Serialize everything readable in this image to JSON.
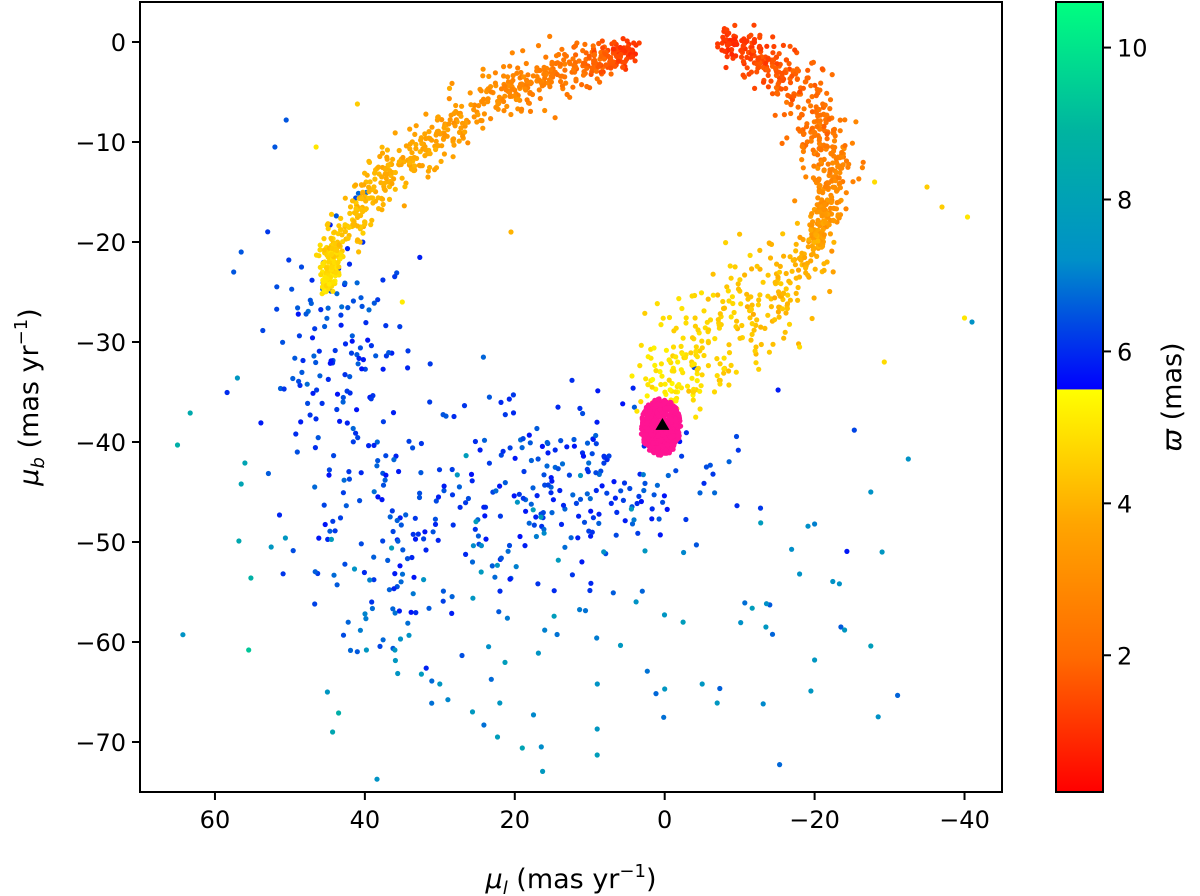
{
  "chart_data": {
    "type": "scatter",
    "title": "",
    "xlabel": "μ_l (mas yr⁻¹)",
    "ylabel": "μ_b (mas yr⁻¹)",
    "xlim": [
      70,
      -45
    ],
    "ylim": [
      -75,
      4
    ],
    "x_axis_inverted": true,
    "x_ticks": [
      60,
      40,
      20,
      0,
      -20,
      -40
    ],
    "x_tick_labels": [
      "60",
      "40",
      "20",
      "0",
      "−20",
      "−40"
    ],
    "y_ticks": [
      0,
      -10,
      -20,
      -30,
      -40,
      -50,
      -60,
      -70
    ],
    "y_tick_labels": [
      "0",
      "−10",
      "−20",
      "−30",
      "−40",
      "−50",
      "−60",
      "−70"
    ],
    "grid": false,
    "colorbar": {
      "label": "ϖ (mas)",
      "range": [
        0.2,
        10.6
      ],
      "ticks": [
        2,
        4,
        6,
        8,
        10
      ],
      "tick_labels": [
        "2",
        "4",
        "6",
        "8",
        "10"
      ],
      "colormap": "red-orange-yellow (ϖ < 5.5) / blue-teal-green (ϖ ≥ 5.5)",
      "segments": [
        {
          "from": 0.2,
          "to": 5.5,
          "colors": [
            "#ff0000",
            "#ff6a00",
            "#ffa500",
            "#ffff00"
          ]
        },
        {
          "from": 5.5,
          "to": 10.6,
          "colors": [
            "#0000ff",
            "#0090c8",
            "#00b4a0",
            "#00ff80"
          ]
        }
      ]
    },
    "series": [
      {
        "marker": "point",
        "color_encodes": "parallax (mas)",
        "groups": [
          {
            "kind": "arc",
            "path": [
              [
                4,
                -1
              ],
              [
                10,
                -2
              ],
              [
                20,
                -4.5
              ],
              [
                30,
                -9
              ],
              [
                38,
                -14
              ],
              [
                44,
                -20
              ],
              [
                45,
                -25
              ]
            ],
            "parallax": [
              1.0,
              2.5,
              3.6,
              4.2,
              5.0
            ],
            "spread": 1.4,
            "count": 750
          },
          {
            "kind": "arc",
            "path": [
              [
                -8,
                0
              ],
              [
                -14,
                -2
              ],
              [
                -19,
                -6
              ],
              [
                -22,
                -11
              ],
              [
                -22,
                -16
              ],
              [
                -20,
                -20
              ]
            ],
            "parallax": [
              1.0,
              1.6,
              2.3,
              3.0,
              3.6
            ],
            "spread": 1.8,
            "count": 520
          },
          {
            "kind": "arc",
            "path": [
              [
                -20,
                -21
              ],
              [
                -14,
                -25
              ],
              [
                -8,
                -28
              ],
              [
                -2,
                -32
              ],
              [
                1,
                -35
              ]
            ],
            "parallax": [
              3.8,
              4.3,
              4.8,
              5.2
            ],
            "spread": 3.0,
            "count": 320
          },
          {
            "kind": "blob",
            "center": [
              0.5,
              -38.5
            ],
            "radius": 2.7,
            "parallax": 2.5,
            "color": "#ff1493",
            "count": 500
          },
          {
            "kind": "cloud",
            "center": [
              13,
              -44
            ],
            "sx": 11,
            "sy": 4.5,
            "parallax": [
              5.7,
              6.8
            ],
            "count": 220
          },
          {
            "kind": "cloud",
            "center": [
              42,
              -32
            ],
            "sx": 5,
            "sy": 8,
            "parallax": [
              5.7,
              6.8
            ],
            "count": 150
          },
          {
            "kind": "cloud",
            "center": [
              35,
              -50
            ],
            "sx": 7,
            "sy": 6,
            "parallax": [
              5.7,
              6.8
            ],
            "count": 90
          },
          {
            "kind": "cloud",
            "center": [
              20,
              -57
            ],
            "sx": 16,
            "sy": 8,
            "parallax": [
              6.5,
              7.8
            ],
            "count": 70
          },
          {
            "kind": "cloud",
            "center": [
              -15,
              -58
            ],
            "sx": 10,
            "sy": 8,
            "parallax": [
              6.5,
              7.8
            ],
            "count": 20
          }
        ],
        "points": [
          {
            "x": 65,
            "y": -40.3,
            "parallax": 8.6
          },
          {
            "x": 63.3,
            "y": -37.1,
            "parallax": 8.4
          },
          {
            "x": 57,
            "y": -33.6,
            "parallax": 7.5
          },
          {
            "x": 56,
            "y": -42.1,
            "parallax": 8.1
          },
          {
            "x": 56.5,
            "y": -44.2,
            "parallax": 8.1
          },
          {
            "x": 56.8,
            "y": -49.9,
            "parallax": 8.3
          },
          {
            "x": 55.2,
            "y": -53.6,
            "parallax": 8.7
          },
          {
            "x": 55.5,
            "y": -60.8,
            "parallax": 9.3
          },
          {
            "x": 52.5,
            "y": -50.5,
            "parallax": 7.5
          },
          {
            "x": 50.6,
            "y": -49.6,
            "parallax": 7.5
          },
          {
            "x": 45,
            "y": -65,
            "parallax": 7.5
          },
          {
            "x": 43.5,
            "y": -67.1,
            "parallax": 8.6
          },
          {
            "x": 44.3,
            "y": -69,
            "parallax": 8.2
          },
          {
            "x": 39.8,
            "y": -60.8,
            "parallax": 7.5
          },
          {
            "x": 36,
            "y": -60.8,
            "parallax": 7.5
          },
          {
            "x": 30,
            "y": -64.2,
            "parallax": 7.5
          },
          {
            "x": 22,
            "y": -66.1,
            "parallax": 7.5
          },
          {
            "x": 22.3,
            "y": -69.5,
            "parallax": 7.8
          },
          {
            "x": 19,
            "y": -70.6,
            "parallax": 8.1
          },
          {
            "x": 9,
            "y": -71.3,
            "parallax": 7.8
          },
          {
            "x": 9,
            "y": -68.7,
            "parallax": 7.5
          },
          {
            "x": 0,
            "y": -64.7,
            "parallax": 7.5
          },
          {
            "x": -5,
            "y": -64.2,
            "parallax": 7.5
          },
          {
            "x": -7,
            "y": -66.1,
            "parallax": 7.5
          },
          {
            "x": -13.5,
            "y": -58.5,
            "parallax": 7.5
          },
          {
            "x": -18,
            "y": -53.2,
            "parallax": 7.3
          },
          {
            "x": -20,
            "y": -48.2,
            "parallax": 7.0
          },
          {
            "x": -20,
            "y": -61.8,
            "parallax": 7.5
          },
          {
            "x": -19.5,
            "y": -64.9,
            "parallax": 7.5
          },
          {
            "x": -24,
            "y": -58.8,
            "parallax": 7.5
          },
          {
            "x": -27.5,
            "y": -60.4,
            "parallax": 7.8
          },
          {
            "x": -27.5,
            "y": -45,
            "parallax": 7.3
          },
          {
            "x": -29,
            "y": -51,
            "parallax": 7.5
          },
          {
            "x": -32.5,
            "y": -41.7,
            "parallax": 7.3
          },
          {
            "x": -41,
            "y": -28,
            "parallax": 7.3
          },
          {
            "x": -40,
            "y": -27.6,
            "parallax": 5.0
          },
          {
            "x": -40.4,
            "y": -17.5,
            "parallax": 5.0
          },
          {
            "x": -37,
            "y": -16.5,
            "parallax": 4.5
          },
          {
            "x": -35,
            "y": -14.5,
            "parallax": 4.5
          },
          {
            "x": -28,
            "y": -14,
            "parallax": 4.8
          },
          {
            "x": -29.3,
            "y": -32,
            "parallax": 4.8
          },
          {
            "x": -18,
            "y": -30.5,
            "parallax": 4.8
          },
          {
            "x": 20.5,
            "y": -19,
            "parallax": 4.0
          },
          {
            "x": 46.5,
            "y": -10.5,
            "parallax": 5.0
          },
          {
            "x": 41,
            "y": -6.2,
            "parallax": 4.5
          },
          {
            "x": 35,
            "y": -26,
            "parallax": 5.1
          },
          {
            "x": 50.5,
            "y": -7.8,
            "parallax": 6.5
          },
          {
            "x": 52,
            "y": -10.5,
            "parallax": 6.5
          },
          {
            "x": 56.5,
            "y": -21,
            "parallax": 6.5
          },
          {
            "x": 57.5,
            "y": -23,
            "parallax": 6.5
          }
        ]
      },
      {
        "marker": "triangle",
        "color": "#000000",
        "points": [
          {
            "x": 0.3,
            "y": -38.3
          }
        ]
      }
    ]
  }
}
